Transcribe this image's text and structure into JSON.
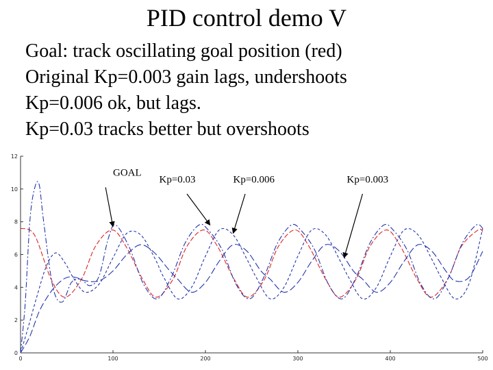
{
  "slide": {
    "title": "PID control demo V",
    "bullets": [
      "Goal: track oscillating goal position (red)",
      "Original Kp=0.003 gain lags, undershoots",
      "Kp=0.006 ok, but lags.",
      "Kp=0.03 tracks better but overshoots"
    ]
  },
  "chart_data": {
    "type": "line",
    "title": "",
    "xlabel": "",
    "ylabel": "",
    "xlim": [
      0,
      500
    ],
    "ylim": [
      0,
      12
    ],
    "x_ticks": [
      0,
      100,
      200,
      300,
      400,
      500
    ],
    "y_ticks": [
      0,
      2,
      4,
      6,
      8,
      10,
      12
    ],
    "grid": false,
    "series": [
      {
        "name": "GOAL",
        "color": "#dd2222",
        "dash": "7 3",
        "x": [
          0,
          15,
          33,
          48,
          66,
          81,
          99,
          114,
          132,
          147,
          165,
          180,
          198,
          213,
          231,
          246,
          264,
          279,
          297,
          312,
          330,
          345,
          363,
          378,
          396,
          411,
          429,
          444,
          462,
          477,
          495,
          500
        ],
        "y": [
          7.6,
          7.2,
          4.5,
          3.4,
          4.5,
          6.5,
          7.5,
          6.5,
          4.5,
          3.4,
          4.5,
          6.5,
          7.5,
          6.5,
          4.5,
          3.4,
          4.5,
          6.5,
          7.5,
          6.5,
          4.5,
          3.4,
          4.5,
          6.5,
          7.5,
          6.5,
          4.5,
          3.4,
          4.5,
          6.5,
          7.5,
          7.4
        ]
      },
      {
        "name": "Kp=0.03",
        "color": "#2233aa",
        "dash": "8 3 2 3",
        "x": [
          0,
          5,
          10,
          15,
          20,
          25,
          35,
          45,
          55,
          65,
          75,
          85,
          95,
          103,
          118,
          133,
          148,
          163,
          178,
          193,
          203,
          218,
          233,
          248,
          263,
          278,
          293,
          303,
          318,
          333,
          348,
          363,
          378,
          393,
          403,
          418,
          433,
          448,
          463,
          478,
          493,
          500
        ],
        "y": [
          0,
          3,
          8,
          10,
          10.3,
          8,
          4,
          3.1,
          4.3,
          4.5,
          4.1,
          4.7,
          7,
          7.8,
          6.4,
          4.2,
          3.3,
          4.6,
          6.7,
          7.8,
          7.5,
          6.3,
          4.2,
          3.3,
          4.6,
          6.7,
          7.8,
          7.5,
          6.3,
          4.2,
          3.3,
          4.6,
          6.7,
          7.8,
          7.5,
          6.3,
          4.2,
          3.3,
          4.6,
          6.7,
          7.8,
          7.6
        ]
      },
      {
        "name": "Kp=0.006",
        "color": "#2233aa",
        "dash": "4 3",
        "x": [
          0,
          8,
          18,
          28,
          38,
          48,
          58,
          70,
          85,
          100,
          115,
          130,
          145,
          155,
          170,
          185,
          200,
          215,
          230,
          245,
          255,
          270,
          285,
          300,
          315,
          330,
          345,
          355,
          370,
          385,
          400,
          415,
          430,
          445,
          455,
          470,
          485,
          500
        ],
        "y": [
          0,
          1.5,
          3.5,
          5.3,
          6.1,
          5.5,
          4.5,
          3.7,
          4.2,
          5.8,
          7.3,
          7.2,
          5.8,
          4.6,
          3.3,
          4,
          5.9,
          7.5,
          7.2,
          5.7,
          4.6,
          3.3,
          4,
          5.9,
          7.5,
          7.2,
          5.7,
          4.6,
          3.3,
          4,
          5.9,
          7.5,
          7.2,
          5.7,
          4.6,
          3.3,
          4.2,
          7.6
        ]
      },
      {
        "name": "Kp=0.003",
        "color": "#2233aa",
        "dash": "10 4",
        "x": [
          0,
          10,
          20,
          30,
          40,
          50,
          60,
          70,
          85,
          100,
          115,
          130,
          145,
          160,
          170,
          185,
          200,
          215,
          230,
          245,
          260,
          270,
          285,
          300,
          315,
          330,
          345,
          360,
          370,
          385,
          400,
          415,
          430,
          445,
          460,
          470,
          485,
          500
        ],
        "y": [
          0,
          1,
          2.5,
          3.5,
          4.2,
          4.6,
          4.6,
          4.4,
          4.4,
          5,
          6,
          6.6,
          6.1,
          5.1,
          4.5,
          3.7,
          4.3,
          5.6,
          6.6,
          6.2,
          5,
          4.5,
          3.7,
          4.3,
          5.6,
          6.6,
          6.2,
          5,
          4.5,
          3.7,
          4.3,
          5.6,
          6.6,
          6.2,
          5,
          4.4,
          4.6,
          6.2
        ]
      }
    ],
    "annotations": [
      {
        "label": "GOAL",
        "text_x": 100,
        "text_y": 10.8,
        "from_x": 92,
        "from_y": 10.1,
        "to_x": 100,
        "to_y": 7.7
      },
      {
        "label": "Kp=0.03",
        "text_x": 150,
        "text_y": 10.4,
        "from_x": 180,
        "from_y": 9.7,
        "to_x": 205,
        "to_y": 7.8
      },
      {
        "label": "Kp=0.006",
        "text_x": 230,
        "text_y": 10.4,
        "from_x": 243,
        "from_y": 9.7,
        "to_x": 230,
        "to_y": 7.3
      },
      {
        "label": "Kp=0.003",
        "text_x": 353,
        "text_y": 10.4,
        "from_x": 370,
        "from_y": 9.7,
        "to_x": 350,
        "to_y": 5.8
      }
    ]
  }
}
